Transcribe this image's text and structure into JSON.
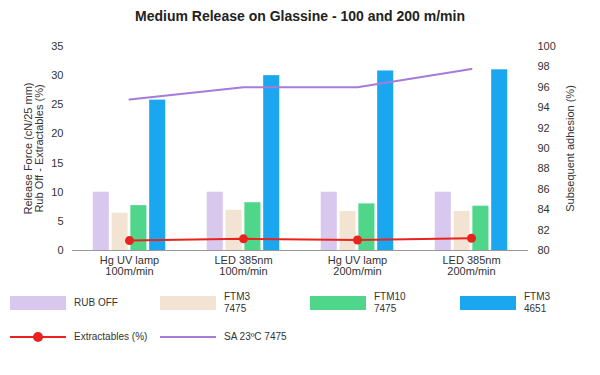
{
  "chart_data": {
    "type": "bar",
    "title": "Medium Release on Glassine - 100 and 200 m/min",
    "ylabel": "Release Force (cN/25 mm)\nRub Off - Extractables (%)",
    "y2label": "Subsequent adhesion (%)",
    "categories": [
      "Hg UV lamp\n100m/min",
      "LED 385nm\n100m/min",
      "Hg UV lamp\n200m/min",
      "LED 385nm\n200m/min"
    ],
    "series": [
      {
        "name": "RUB OFF",
        "type": "bar",
        "color": "#d8c8ee",
        "values": [
          10,
          10,
          10,
          10
        ]
      },
      {
        "name": "FTM3\n7475",
        "type": "bar",
        "color": "#f3e3d3",
        "values": [
          6.4,
          6.9,
          6.7,
          6.7
        ]
      },
      {
        "name": "FTM10\n7475",
        "type": "bar",
        "color": "#4fd68a",
        "values": [
          7.7,
          8.2,
          8.0,
          7.6
        ]
      },
      {
        "name": "FTM3\n4651",
        "type": "bar",
        "color": "#1aa7ef",
        "values": [
          25.8,
          30.0,
          30.8,
          31.0
        ]
      },
      {
        "name": "Extractables (%)",
        "type": "line",
        "marker": "circle",
        "color": "#e8231e",
        "values": [
          1.7,
          2.0,
          1.8,
          2.1
        ]
      },
      {
        "name": "SA 23ºC 7475",
        "type": "line",
        "axis": "y2",
        "color": "#a67bd9",
        "values": [
          94.8,
          96.0,
          96.0,
          97.8
        ]
      }
    ],
    "ylim": [
      0,
      35
    ],
    "yticks": [
      0,
      5,
      10,
      15,
      20,
      25,
      30,
      35
    ],
    "y2lim": [
      80,
      100
    ],
    "y2ticks": [
      80,
      82,
      84,
      86,
      88,
      90,
      92,
      94,
      96,
      98,
      100
    ],
    "legend": "bottom",
    "grid": false
  }
}
